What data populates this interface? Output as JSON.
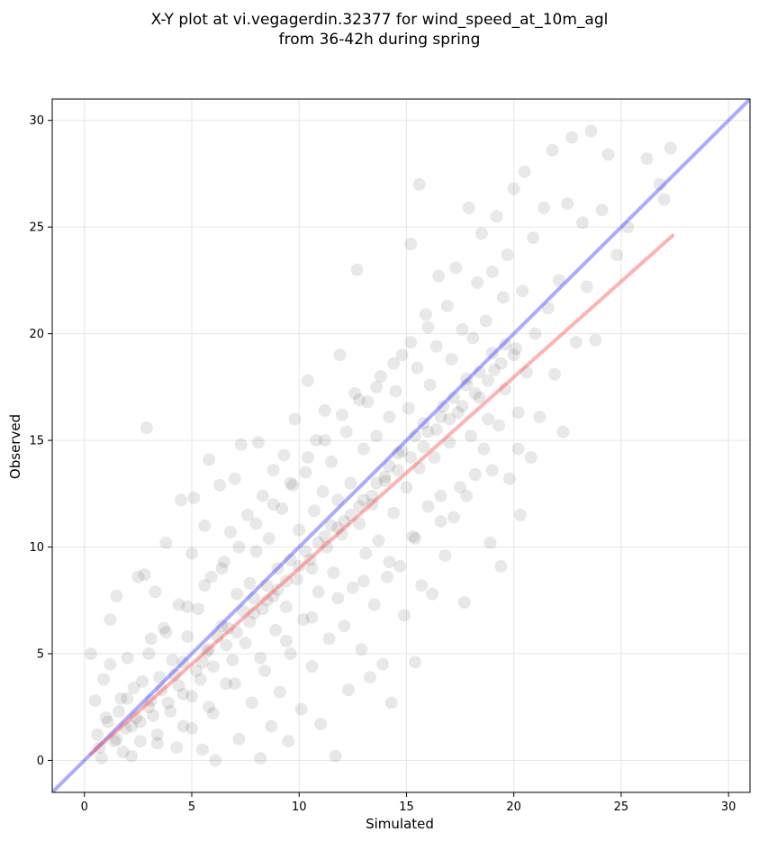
{
  "chart_data": {
    "type": "scatter",
    "title_lines": [
      "X-Y plot at vi.vegagerdin.32377 for wind_speed_at_10m_agl",
      "from 36-42h during spring"
    ],
    "xlabel": "Simulated",
    "ylabel": "Observed",
    "xlim": [
      -1.5,
      31
    ],
    "ylim": [
      -1.5,
      31
    ],
    "xticks": [
      0,
      5,
      10,
      15,
      20,
      25,
      30
    ],
    "yticks": [
      0,
      5,
      10,
      15,
      20,
      25,
      30
    ],
    "grid": true,
    "point_color": "#000000",
    "point_opacity": 0.09,
    "identity_line": {
      "color": "#4444ff",
      "from": [
        -1.5,
        -1.5
      ],
      "to": [
        31,
        31
      ]
    },
    "fit_line": {
      "color": "#ff5555",
      "from": [
        0.3,
        0.3
      ],
      "to": [
        27.4,
        24.6
      ]
    },
    "points": [
      [
        0.3,
        5.0
      ],
      [
        0.5,
        2.8
      ],
      [
        0.6,
        1.2
      ],
      [
        0.8,
        0.1
      ],
      [
        0.9,
        3.8
      ],
      [
        1.0,
        2.0
      ],
      [
        1.2,
        4.5
      ],
      [
        1.2,
        6.6
      ],
      [
        1.5,
        7.7
      ],
      [
        1.5,
        1.0
      ],
      [
        1.7,
        2.9
      ],
      [
        1.8,
        0.4
      ],
      [
        2.0,
        4.8
      ],
      [
        2.2,
        1.6
      ],
      [
        2.3,
        3.4
      ],
      [
        2.5,
        8.6
      ],
      [
        2.6,
        0.9
      ],
      [
        2.8,
        8.7
      ],
      [
        2.9,
        15.6
      ],
      [
        3.0,
        2.5
      ],
      [
        3.1,
        5.7
      ],
      [
        3.3,
        7.9
      ],
      [
        3.4,
        1.2
      ],
      [
        3.5,
        3.9
      ],
      [
        3.7,
        6.2
      ],
      [
        3.8,
        10.2
      ],
      [
        4.0,
        2.3
      ],
      [
        4.1,
        4.7
      ],
      [
        4.3,
        0.6
      ],
      [
        4.4,
        7.3
      ],
      [
        4.5,
        12.2
      ],
      [
        4.6,
        3.1
      ],
      [
        4.8,
        5.8
      ],
      [
        5.0,
        9.7
      ],
      [
        5.0,
        1.5
      ],
      [
        5.1,
        12.3
      ],
      [
        5.3,
        7.1
      ],
      [
        5.4,
        3.8
      ],
      [
        5.5,
        0.5
      ],
      [
        5.6,
        11.0
      ],
      [
        5.8,
        5.2
      ],
      [
        5.8,
        14.1
      ],
      [
        5.9,
        8.6
      ],
      [
        6.0,
        2.2
      ],
      [
        6.1,
        0.0
      ],
      [
        6.3,
        12.9
      ],
      [
        6.4,
        6.3
      ],
      [
        6.5,
        9.3
      ],
      [
        6.6,
        3.6
      ],
      [
        6.8,
        10.7
      ],
      [
        6.9,
        4.7
      ],
      [
        7.0,
        13.2
      ],
      [
        7.1,
        7.8
      ],
      [
        7.2,
        1.0
      ],
      [
        7.3,
        14.8
      ],
      [
        7.5,
        5.5
      ],
      [
        7.6,
        11.5
      ],
      [
        7.7,
        8.3
      ],
      [
        7.8,
        2.7
      ],
      [
        7.9,
        6.9
      ],
      [
        8.0,
        9.8
      ],
      [
        8.1,
        14.9
      ],
      [
        8.2,
        0.1
      ],
      [
        8.3,
        12.4
      ],
      [
        8.4,
        4.2
      ],
      [
        8.5,
        7.5
      ],
      [
        8.6,
        10.4
      ],
      [
        8.7,
        1.6
      ],
      [
        8.8,
        13.6
      ],
      [
        8.9,
        6.1
      ],
      [
        9.0,
        9.0
      ],
      [
        9.1,
        3.2
      ],
      [
        9.2,
        11.8
      ],
      [
        9.3,
        14.3
      ],
      [
        9.4,
        7.2
      ],
      [
        9.5,
        0.9
      ],
      [
        9.6,
        5.0
      ],
      [
        9.7,
        12.9
      ],
      [
        9.8,
        16.0
      ],
      [
        9.9,
        8.5
      ],
      [
        10.0,
        10.8
      ],
      [
        10.1,
        2.4
      ],
      [
        10.2,
        6.6
      ],
      [
        10.3,
        13.5
      ],
      [
        10.4,
        17.8
      ],
      [
        10.5,
        9.4
      ],
      [
        10.6,
        4.4
      ],
      [
        10.7,
        11.7
      ],
      [
        10.8,
        15.0
      ],
      [
        10.9,
        7.9
      ],
      [
        11.0,
        1.7
      ],
      [
        11.1,
        12.6
      ],
      [
        11.2,
        16.4
      ],
      [
        11.3,
        10.0
      ],
      [
        11.4,
        5.7
      ],
      [
        11.5,
        14.0
      ],
      [
        11.6,
        8.8
      ],
      [
        11.7,
        0.2
      ],
      [
        11.8,
        12.2
      ],
      [
        11.9,
        19.0
      ],
      [
        12.0,
        10.6
      ],
      [
        12.1,
        6.3
      ],
      [
        12.2,
        15.4
      ],
      [
        12.3,
        3.3
      ],
      [
        12.4,
        13.0
      ],
      [
        12.5,
        8.1
      ],
      [
        12.6,
        17.2
      ],
      [
        12.7,
        23.0
      ],
      [
        12.8,
        11.1
      ],
      [
        12.9,
        5.2
      ],
      [
        13.0,
        14.6
      ],
      [
        13.1,
        9.7
      ],
      [
        13.2,
        16.8
      ],
      [
        13.3,
        3.9
      ],
      [
        13.4,
        12.0
      ],
      [
        13.5,
        7.3
      ],
      [
        13.6,
        15.2
      ],
      [
        13.7,
        10.3
      ],
      [
        13.8,
        18.0
      ],
      [
        13.9,
        4.5
      ],
      [
        14.0,
        13.3
      ],
      [
        14.1,
        8.6
      ],
      [
        14.2,
        16.1
      ],
      [
        14.3,
        2.7
      ],
      [
        14.4,
        11.6
      ],
      [
        14.5,
        17.3
      ],
      [
        14.6,
        14.4
      ],
      [
        14.7,
        9.1
      ],
      [
        14.8,
        19.0
      ],
      [
        14.9,
        6.8
      ],
      [
        15.0,
        12.8
      ],
      [
        15.1,
        16.5
      ],
      [
        15.2,
        24.2
      ],
      [
        15.3,
        10.5
      ],
      [
        15.4,
        4.6
      ],
      [
        15.5,
        18.4
      ],
      [
        15.6,
        13.7
      ],
      [
        15.6,
        27.0
      ],
      [
        15.7,
        8.2
      ],
      [
        15.8,
        15.8
      ],
      [
        15.9,
        20.9
      ],
      [
        16.0,
        11.9
      ],
      [
        16.1,
        17.6
      ],
      [
        16.2,
        7.8
      ],
      [
        16.3,
        14.2
      ],
      [
        16.4,
        19.4
      ],
      [
        16.5,
        22.7
      ],
      [
        16.6,
        12.4
      ],
      [
        16.7,
        16.6
      ],
      [
        16.8,
        9.6
      ],
      [
        16.9,
        21.3
      ],
      [
        17.0,
        14.9
      ],
      [
        17.1,
        18.8
      ],
      [
        17.2,
        11.4
      ],
      [
        17.3,
        23.1
      ],
      [
        17.4,
        16.3
      ],
      [
        17.5,
        12.8
      ],
      [
        17.6,
        20.2
      ],
      [
        17.7,
        7.4
      ],
      [
        17.8,
        17.9
      ],
      [
        17.9,
        25.9
      ],
      [
        18.0,
        15.2
      ],
      [
        18.1,
        19.8
      ],
      [
        18.2,
        13.4
      ],
      [
        18.3,
        22.4
      ],
      [
        18.4,
        17.0
      ],
      [
        18.5,
        24.7
      ],
      [
        18.6,
        14.6
      ],
      [
        18.7,
        20.6
      ],
      [
        18.8,
        16.0
      ],
      [
        18.9,
        10.2
      ],
      [
        19.0,
        22.9
      ],
      [
        19.1,
        18.3
      ],
      [
        19.2,
        25.5
      ],
      [
        19.3,
        15.7
      ],
      [
        19.4,
        9.1
      ],
      [
        19.5,
        21.7
      ],
      [
        19.6,
        17.4
      ],
      [
        19.7,
        23.7
      ],
      [
        19.8,
        13.2
      ],
      [
        20.0,
        26.8
      ],
      [
        20.1,
        19.3
      ],
      [
        20.2,
        16.3
      ],
      [
        20.3,
        11.5
      ],
      [
        20.4,
        22.0
      ],
      [
        20.5,
        27.6
      ],
      [
        20.6,
        18.2
      ],
      [
        20.8,
        14.2
      ],
      [
        20.9,
        24.5
      ],
      [
        21.0,
        20.0
      ],
      [
        21.2,
        16.1
      ],
      [
        21.4,
        25.9
      ],
      [
        21.6,
        21.2
      ],
      [
        21.8,
        28.6
      ],
      [
        21.9,
        18.1
      ],
      [
        22.1,
        22.5
      ],
      [
        22.3,
        15.4
      ],
      [
        22.5,
        26.1
      ],
      [
        22.7,
        29.2
      ],
      [
        22.9,
        19.6
      ],
      [
        23.2,
        25.2
      ],
      [
        23.4,
        22.2
      ],
      [
        23.6,
        29.5
      ],
      [
        23.8,
        19.7
      ],
      [
        24.1,
        25.8
      ],
      [
        24.4,
        28.4
      ],
      [
        24.8,
        23.7
      ],
      [
        25.3,
        25.0
      ],
      [
        26.2,
        28.2
      ],
      [
        26.8,
        27.0
      ],
      [
        27.0,
        26.3
      ],
      [
        27.3,
        28.7
      ],
      [
        1.1,
        1.8
      ],
      [
        1.6,
        2.3
      ],
      [
        2.0,
        2.9
      ],
      [
        2.4,
        2.0
      ],
      [
        2.7,
        3.7
      ],
      [
        3.1,
        2.8
      ],
      [
        3.6,
        3.3
      ],
      [
        4.2,
        4.0
      ],
      [
        4.6,
        4.6
      ],
      [
        5.2,
        4.2
      ],
      [
        5.7,
        5.1
      ],
      [
        6.2,
        5.8
      ],
      [
        6.7,
        6.2
      ],
      [
        7.4,
        7.0
      ],
      [
        7.9,
        7.6
      ],
      [
        8.5,
        8.2
      ],
      [
        9.0,
        8.0
      ],
      [
        9.6,
        9.4
      ],
      [
        10.3,
        9.8
      ],
      [
        10.9,
        10.2
      ],
      [
        11.5,
        11.0
      ],
      [
        12.1,
        11.2
      ],
      [
        12.8,
        11.9
      ],
      [
        13.4,
        12.4
      ],
      [
        14.0,
        13.1
      ],
      [
        14.6,
        13.6
      ],
      [
        15.2,
        14.2
      ],
      [
        15.8,
        14.7
      ],
      [
        16.4,
        15.5
      ],
      [
        17.0,
        16.0
      ],
      [
        17.6,
        16.6
      ],
      [
        18.2,
        17.2
      ],
      [
        18.8,
        17.8
      ],
      [
        19.4,
        18.6
      ],
      [
        20.0,
        19.0
      ],
      [
        0.7,
        0.6
      ],
      [
        1.4,
        0.9
      ],
      [
        1.9,
        1.5
      ],
      [
        2.6,
        1.8
      ],
      [
        3.2,
        2.1
      ],
      [
        3.9,
        2.7
      ],
      [
        4.4,
        3.5
      ],
      [
        5.0,
        3.0
      ],
      [
        5.5,
        4.6
      ],
      [
        6.0,
        4.4
      ],
      [
        6.6,
        5.4
      ],
      [
        7.1,
        6.0
      ],
      [
        7.7,
        6.5
      ],
      [
        8.3,
        7.1
      ],
      [
        8.8,
        7.7
      ],
      [
        9.4,
        8.4
      ],
      [
        10.0,
        9.1
      ],
      [
        10.6,
        9.0
      ],
      [
        11.2,
        10.5
      ],
      [
        11.8,
        10.9
      ],
      [
        12.4,
        11.5
      ],
      [
        13.0,
        12.2
      ],
      [
        13.6,
        13.0
      ],
      [
        14.2,
        13.8
      ],
      [
        14.8,
        14.5
      ],
      [
        15.4,
        15.2
      ],
      [
        16.0,
        15.4
      ],
      [
        16.6,
        16.1
      ],
      [
        17.2,
        17.0
      ],
      [
        17.8,
        17.6
      ],
      [
        18.4,
        18.2
      ],
      [
        19.0,
        19.1
      ],
      [
        19.6,
        19.5
      ],
      [
        3.0,
        5.0
      ],
      [
        3.8,
        6.0
      ],
      [
        4.8,
        7.2
      ],
      [
        5.6,
        8.2
      ],
      [
        6.4,
        9.0
      ],
      [
        7.2,
        10.0
      ],
      [
        8.0,
        11.1
      ],
      [
        8.8,
        12.0
      ],
      [
        9.6,
        13.0
      ],
      [
        10.4,
        14.2
      ],
      [
        11.2,
        15.0
      ],
      [
        12.0,
        16.2
      ],
      [
        12.8,
        16.9
      ],
      [
        13.6,
        17.5
      ],
      [
        14.4,
        18.6
      ],
      [
        15.2,
        19.6
      ],
      [
        16.0,
        20.3
      ],
      [
        2.2,
        0.2
      ],
      [
        3.4,
        0.8
      ],
      [
        4.6,
        1.6
      ],
      [
        5.8,
        2.5
      ],
      [
        7.0,
        3.6
      ],
      [
        8.2,
        4.8
      ],
      [
        9.4,
        5.6
      ],
      [
        10.6,
        6.7
      ],
      [
        11.8,
        7.6
      ],
      [
        13.0,
        8.4
      ],
      [
        14.2,
        9.3
      ],
      [
        15.4,
        10.4
      ],
      [
        16.6,
        11.2
      ],
      [
        17.8,
        12.4
      ],
      [
        19.0,
        13.6
      ],
      [
        20.2,
        14.6
      ]
    ]
  }
}
